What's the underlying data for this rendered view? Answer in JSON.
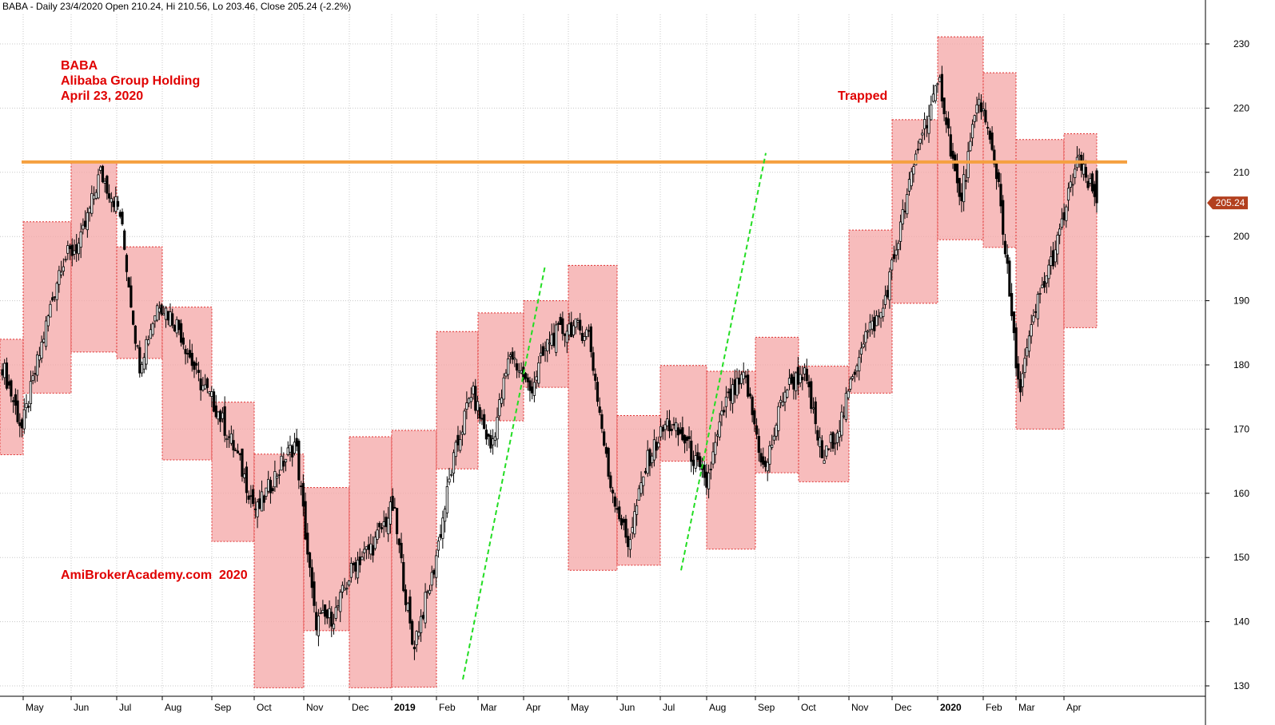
{
  "header": "BABA - Daily 23/4/2020 Open 210.24, Hi 210.56, Lo 203.46, Close 205.24 (-2.2%)",
  "notes": {
    "ticker": "BABA",
    "company": "Alibaba Group Holding",
    "date": "April 23, 2020",
    "trapped": "Trapped",
    "watermark": "AmiBrokerAcademy.com  2020"
  },
  "colors": {
    "background": "#ffffff",
    "grid": "#c8c8c8",
    "box_fill": "#f4a6a6",
    "box_stroke": "#e03030",
    "resistance": "#f5a040",
    "trend": "#22dd22",
    "price_tag": "#b3401f",
    "note_text": "#e00000"
  },
  "chart_data": {
    "type": "candlestick",
    "y_axis": {
      "range": [
        129,
        235
      ],
      "ticks": [
        130,
        140,
        150,
        160,
        170,
        180,
        190,
        200,
        210,
        220,
        230
      ],
      "position": "right"
    },
    "x_axis": {
      "months": [
        "May",
        "Jun",
        "Jul",
        "Aug",
        "Sep",
        "Oct",
        "Nov",
        "Dec",
        "2019",
        "Feb",
        "Mar",
        "Apr",
        "May",
        "Jun",
        "Jul",
        "Aug",
        "Sep",
        "Oct",
        "Nov",
        "Dec",
        "2020",
        "Feb",
        "Mar",
        "Apr"
      ],
      "bold": [
        "2019",
        "2020"
      ]
    },
    "last_price": "205.24",
    "resistance_level": 211.6,
    "monthly_ranges": [
      {
        "month": "Apr 2018",
        "low": 166,
        "high": 184
      },
      {
        "month": "May 2018",
        "low": 175.6,
        "high": 202.3
      },
      {
        "month": "Jun 2018",
        "low": 182,
        "high": 211.7
      },
      {
        "month": "Jul 2018",
        "low": 181,
        "high": 198.4
      },
      {
        "month": "Aug 2018",
        "low": 165.2,
        "high": 189
      },
      {
        "month": "Sep 2018",
        "low": 152.5,
        "high": 174.2
      },
      {
        "month": "Oct 2018",
        "low": 129.7,
        "high": 166.1
      },
      {
        "month": "Nov 2018",
        "low": 138.6,
        "high": 160.9
      },
      {
        "month": "Dec 2018",
        "low": 129.7,
        "high": 168.8
      },
      {
        "month": "Jan 2019",
        "low": 129.8,
        "high": 169.8
      },
      {
        "month": "Feb 2019",
        "low": 163.8,
        "high": 185.2
      },
      {
        "month": "Mar 2019",
        "low": 171.3,
        "high": 188.1
      },
      {
        "month": "Apr 2019",
        "low": 176.5,
        "high": 190
      },
      {
        "month": "May 2019",
        "low": 148,
        "high": 195.5
      },
      {
        "month": "Jun 2019",
        "low": 148.8,
        "high": 172.1
      },
      {
        "month": "Jul 2019",
        "low": 165,
        "high": 179.9
      },
      {
        "month": "Aug 2019",
        "low": 151.3,
        "high": 179
      },
      {
        "month": "Sep 2019",
        "low": 163.2,
        "high": 184.3
      },
      {
        "month": "Oct 2019",
        "low": 161.8,
        "high": 179.8
      },
      {
        "month": "Nov 2019",
        "low": 175.6,
        "high": 201
      },
      {
        "month": "Dec 2019",
        "low": 189.6,
        "high": 218.2
      },
      {
        "month": "Jan 2020",
        "low": 199.5,
        "high": 231.1
      },
      {
        "month": "Feb 2020",
        "low": 198.3,
        "high": 225.5
      },
      {
        "month": "Mar 2020",
        "low": 170,
        "high": 215.1
      },
      {
        "month": "Apr 2020",
        "low": 185.8,
        "high": 216
      }
    ],
    "closes_approx": [
      180,
      170,
      183,
      196,
      199,
      210,
      204,
      180,
      190,
      186,
      178,
      173,
      166,
      157,
      163,
      168,
      140,
      141,
      149,
      152,
      158,
      136,
      147,
      164,
      176,
      167,
      182,
      176,
      184,
      186,
      185,
      163,
      152,
      165,
      171,
      168,
      161,
      174,
      178,
      163,
      176,
      179,
      165,
      172,
      184,
      188,
      202,
      216,
      224,
      205,
      222,
      208,
      176,
      190,
      199,
      212,
      205.2
    ],
    "trendlines": [
      {
        "from": [
          "Feb 2019",
          131
        ],
        "to": [
          "Apr 2019",
          195.5
        ]
      },
      {
        "from": [
          "Jul 2019",
          148
        ],
        "to": [
          "Sep 2019",
          213
        ]
      }
    ]
  }
}
